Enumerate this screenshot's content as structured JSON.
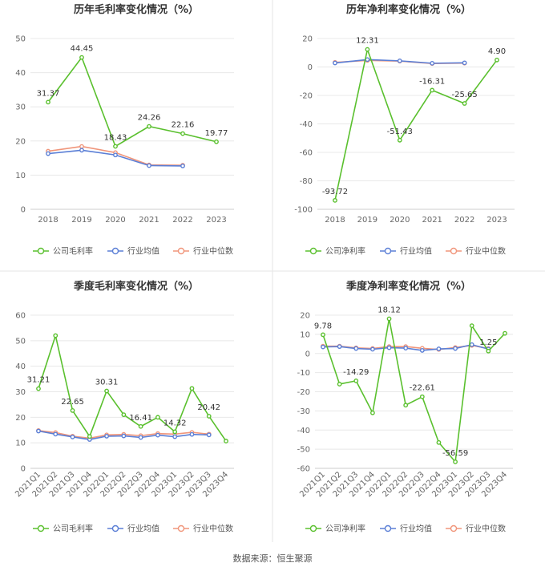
{
  "footer": "数据来源：恒生聚源",
  "chart_data": [
    {
      "id": "annual-gross",
      "type": "line",
      "title": "历年毛利率变化情况（%）",
      "categories": [
        "2018",
        "2019",
        "2020",
        "2021",
        "2022",
        "2023"
      ],
      "ylim": [
        0,
        50
      ],
      "yticks": [
        0,
        10,
        20,
        30,
        40,
        50
      ],
      "grid": true,
      "legend_position": "bottom",
      "series": [
        {
          "name": "公司毛利率",
          "color": "#5ac02e",
          "values": [
            31.37,
            44.45,
            18.43,
            24.26,
            22.16,
            19.77
          ],
          "labels": [
            "31.37",
            "44.45",
            "18.43",
            "24.26",
            "22.16",
            "19.77"
          ]
        },
        {
          "name": "行业均值",
          "color": "#5b7fd6",
          "values": [
            16.3,
            17.3,
            15.9,
            12.8,
            12.7,
            null
          ]
        },
        {
          "name": "行业中位数",
          "color": "#f0957a",
          "values": [
            17.0,
            18.4,
            16.6,
            13.0,
            12.9,
            null
          ]
        }
      ]
    },
    {
      "id": "annual-net",
      "type": "line",
      "title": "历年净利率变化情况（%）",
      "categories": [
        "2018",
        "2019",
        "2020",
        "2021",
        "2022",
        "2023"
      ],
      "ylim": [
        -100,
        20
      ],
      "yticks": [
        -100,
        -80,
        -60,
        -40,
        -20,
        0,
        20
      ],
      "grid": true,
      "legend_position": "bottom",
      "series": [
        {
          "name": "公司净利率",
          "color": "#5ac02e",
          "values": [
            -93.72,
            12.31,
            -51.43,
            -16.31,
            -25.65,
            4.9
          ],
          "labels": [
            "-93.72",
            "12.31",
            "-51.43",
            "-16.31",
            "-25.65",
            "4.90"
          ]
        },
        {
          "name": "行业均值",
          "color": "#5b7fd6",
          "values": [
            2.8,
            5.2,
            4.3,
            2.6,
            2.9,
            null
          ]
        },
        {
          "name": "行业中位数",
          "color": "#f0957a",
          "values": [
            3.2,
            4.6,
            4.1,
            2.4,
            2.7,
            null
          ]
        }
      ]
    },
    {
      "id": "quarterly-gross",
      "type": "line",
      "title": "季度毛利率变化情况（%）",
      "categories": [
        "2021Q1",
        "2021Q2",
        "2021Q3",
        "2021Q4",
        "2022Q1",
        "2022Q2",
        "2022Q3",
        "2022Q4",
        "2023Q1",
        "2023Q2",
        "2023Q3",
        "2023Q4"
      ],
      "ylim": [
        0,
        60
      ],
      "yticks": [
        0,
        10,
        20,
        30,
        40,
        50,
        60
      ],
      "grid": true,
      "legend_position": "bottom",
      "series": [
        {
          "name": "公司毛利率",
          "color": "#5ac02e",
          "values": [
            31.21,
            52.0,
            22.65,
            12.5,
            30.31,
            21.0,
            16.41,
            20.0,
            14.32,
            31.3,
            20.42,
            10.7
          ],
          "labels": [
            "31.21",
            "",
            "22.65",
            "",
            "30.31",
            "",
            "16.41",
            "",
            "14.32",
            "",
            "20.42",
            ""
          ]
        },
        {
          "name": "行业均值",
          "color": "#5b7fd6",
          "values": [
            14.6,
            13.4,
            12.3,
            11.3,
            12.6,
            12.7,
            12.1,
            13.0,
            12.4,
            13.3,
            13.1,
            null
          ]
        },
        {
          "name": "行业中位数",
          "color": "#f0957a",
          "values": [
            14.8,
            14.0,
            12.6,
            11.8,
            13.1,
            13.3,
            12.8,
            13.6,
            13.4,
            14.1,
            13.4,
            null
          ]
        }
      ]
    },
    {
      "id": "quarterly-net",
      "type": "line",
      "title": "季度净利率变化情况（%）",
      "categories": [
        "2021Q1",
        "2021Q2",
        "2021Q3",
        "2021Q4",
        "2022Q1",
        "2022Q2",
        "2022Q3",
        "2022Q4",
        "2023Q1",
        "2023Q2",
        "2023Q3",
        "2023Q4"
      ],
      "ylim": [
        -60,
        20
      ],
      "yticks": [
        -60,
        -50,
        -40,
        -30,
        -20,
        -10,
        0,
        10,
        20
      ],
      "grid": true,
      "legend_position": "bottom",
      "series": [
        {
          "name": "公司净利率",
          "color": "#5ac02e",
          "values": [
            9.78,
            -16.0,
            -14.29,
            -31.0,
            18.12,
            -27.0,
            -22.61,
            -46.5,
            -56.59,
            14.5,
            1.25,
            10.5
          ],
          "labels": [
            "9.78",
            "",
            "-14.29",
            "",
            "18.12",
            "",
            "-22.61",
            "",
            "-56.59",
            "",
            "1.25",
            ""
          ]
        },
        {
          "name": "行业均值",
          "color": "#5b7fd6",
          "values": [
            3.4,
            3.6,
            2.6,
            2.2,
            3.0,
            2.8,
            1.6,
            2.4,
            2.6,
            4.6,
            2.3,
            null
          ]
        },
        {
          "name": "行业中位数",
          "color": "#f0957a",
          "values": [
            3.8,
            3.8,
            2.9,
            2.6,
            3.6,
            3.6,
            2.7,
            2.1,
            3.1,
            4.2,
            2.6,
            null
          ]
        }
      ]
    }
  ]
}
